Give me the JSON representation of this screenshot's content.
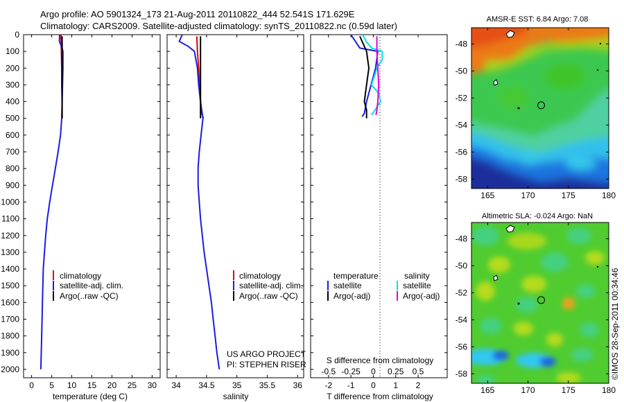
{
  "header": {
    "line1": "Argo profile: AO 5901324_173 21-Aug-2011 20110822_444 52.541S 171.629E",
    "line2": "Climatology: CARS2009. Satellite-adjusted climatology: synTS_20110822.nc (0.59d later)"
  },
  "credit": "©IMOS 28-Sep-2011 00:34:46",
  "project": {
    "line1": "US ARGO PROJECT",
    "line2": "PI: STEPHEN RISER"
  },
  "colors": {
    "climatology": "#e00000",
    "satellite": "#1a1ae6",
    "argo": "#000000",
    "sal_satellite": "#00e0e0",
    "sal_argo": "#e000e0"
  },
  "chart_data": [
    {
      "type": "line",
      "id": "temperature-profile",
      "xlabel": "temperature (deg C)",
      "ylabel": "",
      "xlim": [
        -2,
        32
      ],
      "ylim": [
        2050,
        0
      ],
      "x_ticks": [
        "0",
        "5",
        "10",
        "15",
        "20",
        "25",
        "30"
      ],
      "y_ticks": [
        "0",
        "100",
        "200",
        "300",
        "400",
        "500",
        "600",
        "700",
        "800",
        "900",
        "1000",
        "1100",
        "1200",
        "1300",
        "1400",
        "1500",
        "1600",
        "1700",
        "1800",
        "1900",
        "2000"
      ],
      "legend": [
        "climatology",
        "satellite-adj. clim.",
        "Argo(..raw -QC)"
      ],
      "series": [
        {
          "name": "climatology",
          "points": [
            [
              7.3,
              0
            ],
            [
              7.4,
              100
            ],
            [
              7.5,
              200
            ],
            [
              7.5,
              300
            ],
            [
              7.6,
              400
            ],
            [
              7.6,
              500
            ]
          ]
        },
        {
          "name": "satellite-adj. clim.",
          "points": [
            [
              7.0,
              0
            ],
            [
              6.9,
              40
            ],
            [
              7.6,
              80
            ],
            [
              7.8,
              100
            ],
            [
              7.8,
              200
            ],
            [
              7.7,
              300
            ],
            [
              7.6,
              400
            ],
            [
              7.5,
              500
            ],
            [
              7.2,
              600
            ],
            [
              6.6,
              700
            ],
            [
              5.9,
              800
            ],
            [
              5.2,
              900
            ],
            [
              4.5,
              1000
            ],
            [
              3.9,
              1100
            ],
            [
              3.5,
              1200
            ],
            [
              3.2,
              1300
            ],
            [
              2.9,
              1400
            ],
            [
              2.8,
              1500
            ],
            [
              2.7,
              1600
            ],
            [
              2.6,
              1700
            ],
            [
              2.5,
              1800
            ],
            [
              2.4,
              1900
            ],
            [
              2.3,
              2000
            ]
          ]
        },
        {
          "name": "Argo(..raw -QC)",
          "points": [
            [
              7.6,
              10
            ],
            [
              7.6,
              100
            ],
            [
              7.6,
              200
            ],
            [
              7.6,
              300
            ],
            [
              7.6,
              400
            ],
            [
              7.6,
              500
            ]
          ]
        }
      ]
    },
    {
      "type": "line",
      "id": "salinity-profile",
      "xlabel": "salinity",
      "ylabel": "",
      "xlim": [
        33.85,
        36.1
      ],
      "ylim": [
        2050,
        0
      ],
      "x_ticks": [
        "34",
        "34.5",
        "35",
        "35.5",
        "36"
      ],
      "legend": [
        "climatology",
        "satellite-adj. clim.",
        "Argo(..raw -QC)"
      ],
      "series": [
        {
          "name": "climatology",
          "points": [
            [
              34.34,
              10
            ],
            [
              34.35,
              100
            ],
            [
              34.37,
              200
            ],
            [
              34.38,
              300
            ],
            [
              34.4,
              400
            ],
            [
              34.42,
              470
            ],
            [
              34.45,
              500
            ]
          ]
        },
        {
          "name": "satellite-adj. clim.",
          "points": [
            [
              34.1,
              0
            ],
            [
              34.05,
              40
            ],
            [
              34.2,
              70
            ],
            [
              34.3,
              100
            ],
            [
              34.35,
              200
            ],
            [
              34.37,
              300
            ],
            [
              34.4,
              400
            ],
            [
              34.44,
              500
            ],
            [
              34.41,
              600
            ],
            [
              34.38,
              700
            ],
            [
              34.36,
              800
            ],
            [
              34.36,
              900
            ],
            [
              34.38,
              1000
            ],
            [
              34.4,
              1100
            ],
            [
              34.43,
              1200
            ],
            [
              34.46,
              1300
            ],
            [
              34.5,
              1400
            ],
            [
              34.54,
              1500
            ],
            [
              34.58,
              1600
            ],
            [
              34.61,
              1700
            ],
            [
              34.64,
              1800
            ],
            [
              34.67,
              1900
            ],
            [
              34.71,
              2000
            ]
          ]
        },
        {
          "name": "Argo(..raw -QC)",
          "points": [
            [
              34.4,
              10
            ],
            [
              34.4,
              100
            ],
            [
              34.4,
              200
            ],
            [
              34.4,
              300
            ],
            [
              34.4,
              400
            ],
            [
              34.4,
              500
            ]
          ]
        }
      ]
    },
    {
      "type": "line",
      "id": "difference-profile",
      "xlabel": "T difference from climatology",
      "xlabel_top": "S difference from climatology",
      "T_ticks": [
        "-2",
        "-1",
        "0",
        "1",
        "2"
      ],
      "S_ticks": [
        "-0.5",
        "-0.25",
        "0",
        "0.25",
        "0.5"
      ],
      "xlim_T": [
        -2.8,
        3.3
      ],
      "xlim_S": [
        -0.7,
        0.825
      ],
      "ylim": [
        2050,
        0
      ],
      "legend_headers": [
        "temperature",
        "salinity"
      ],
      "legend_temperature": [
        "satellite",
        "Argo(-adj)"
      ],
      "legend_salinity": [
        "satellite",
        "Argo(-adj)"
      ],
      "series": [
        {
          "name": "temperature satellite",
          "axis": "T",
          "points": [
            [
              -1.0,
              0
            ],
            [
              -0.8,
              40
            ],
            [
              -0.6,
              80
            ],
            [
              0.2,
              100
            ],
            [
              0.1,
              200
            ],
            [
              -0.1,
              300
            ],
            [
              -0.3,
              400
            ],
            [
              -0.4,
              470
            ],
            [
              -0.5,
              490
            ]
          ]
        },
        {
          "name": "temperature Argo(-adj)",
          "axis": "T",
          "points": [
            [
              -0.6,
              10
            ],
            [
              -0.3,
              100
            ],
            [
              -0.2,
              200
            ],
            [
              -0.3,
              300
            ],
            [
              -0.4,
              400
            ],
            [
              -0.3,
              450
            ],
            [
              -0.3,
              500
            ]
          ]
        },
        {
          "name": "salinity satellite",
          "axis": "S",
          "points": [
            [
              -0.12,
              0
            ],
            [
              -0.08,
              40
            ],
            [
              -0.02,
              80
            ],
            [
              0.1,
              100
            ],
            [
              0.1,
              150
            ],
            [
              0.04,
              200
            ],
            [
              -0.02,
              300
            ],
            [
              0.06,
              350
            ],
            [
              0.08,
              400
            ],
            [
              0.02,
              450
            ],
            [
              -0.02,
              480
            ]
          ]
        },
        {
          "name": "salinity Argo(-adj)",
          "axis": "S",
          "points": [
            [
              0.04,
              10
            ],
            [
              0.04,
              100
            ],
            [
              0.05,
              200
            ],
            [
              0.06,
              300
            ],
            [
              0.05,
              400
            ],
            [
              0.04,
              450
            ],
            [
              0.03,
              480
            ]
          ]
        }
      ]
    },
    {
      "type": "heatmap",
      "id": "sst-map",
      "title": "AMSR-E SST: 6.84 Argo: 7.08",
      "xlim": [
        163,
        180
      ],
      "ylim": [
        -58.7,
        -46.8
      ],
      "x_ticks": [
        "165",
        "170",
        "175",
        "180"
      ],
      "y_ticks": [
        "-48",
        "-50",
        "-52",
        "-54",
        "-56",
        "-58"
      ],
      "float_position": [
        171.629,
        -52.541
      ],
      "colormap": [
        "#1e1e96",
        "#1e64e6",
        "#32c8f0",
        "#3cd278",
        "#40c020",
        "#b4dc1e",
        "#f0a01e",
        "#e65a14"
      ]
    },
    {
      "type": "heatmap",
      "id": "sla-map",
      "title": "Altimetric SLA: -0.024 Argo: NaN",
      "xlim": [
        163,
        180
      ],
      "ylim": [
        -58.7,
        -46.8
      ],
      "x_ticks": [
        "165",
        "170",
        "175",
        "180"
      ],
      "y_ticks": [
        "-48",
        "-50",
        "-52",
        "-54",
        "-56",
        "-58"
      ],
      "float_position": [
        171.629,
        -52.541
      ],
      "colormap": [
        "#1e1e96",
        "#1e64e6",
        "#32c8f0",
        "#3cd278",
        "#40c020",
        "#b4dc1e",
        "#f0a01e",
        "#e65a14"
      ]
    }
  ]
}
